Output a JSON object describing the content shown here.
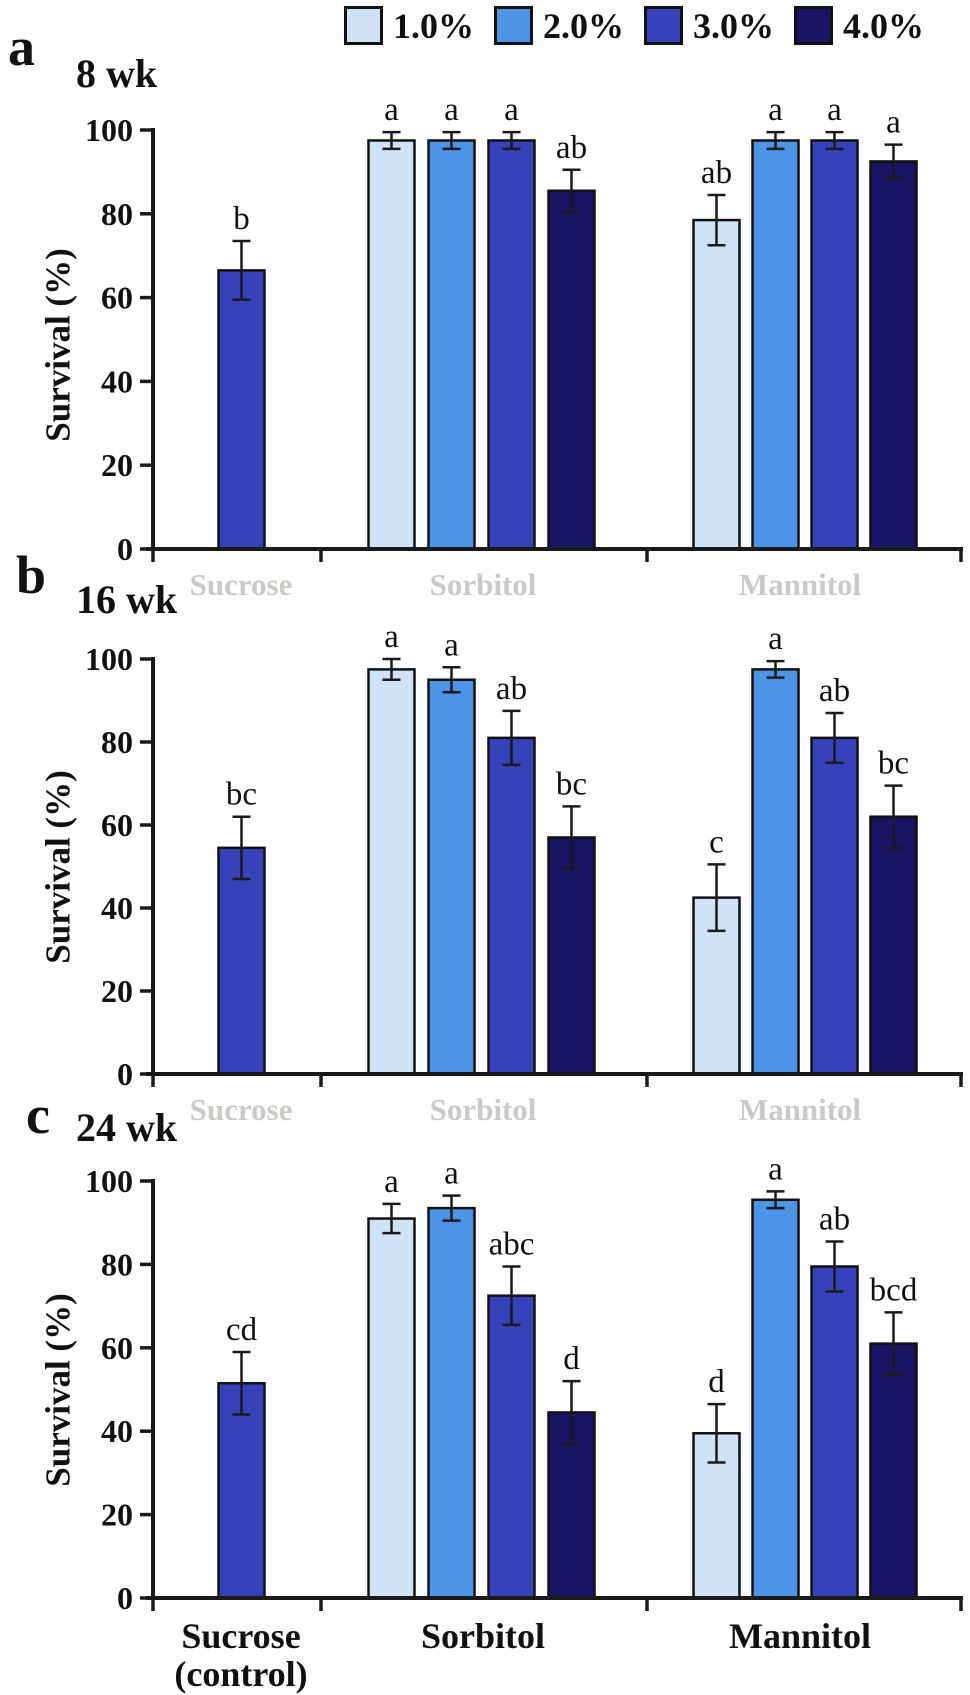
{
  "colors": {
    "background": "#ffffff",
    "axis": "#1a1a1a",
    "bar_border": "#111111",
    "error_bar": "#111111",
    "text": "#111111",
    "ghost_text": "#8f8b83"
  },
  "chart_data": {
    "type": "bar",
    "title": "",
    "ylabel": "Survival (%)",
    "ylim": [
      0,
      100
    ],
    "yticks": [
      0,
      20,
      40,
      60,
      80,
      100
    ],
    "grid": false,
    "legend_position": "top",
    "series": [
      {
        "name": "1.0%",
        "color": "#d0e2f6"
      },
      {
        "name": "2.0%",
        "color": "#4b94e6"
      },
      {
        "name": "3.0%",
        "color": "#3642ba"
      },
      {
        "name": "4.0%",
        "color": "#191463"
      }
    ],
    "groups": [
      "Sucrose (control)",
      "Sorbitol",
      "Mannitol"
    ],
    "x_axis_labels": {
      "sucrose_line1": "Sucrose",
      "sucrose_line2": "(control)",
      "sorbitol": "Sorbitol",
      "mannitol": "Mannitol"
    },
    "ghost_labels": [
      "Sucrose",
      "Sorbitol",
      "Mannitol"
    ],
    "panels": [
      {
        "panel_letter": "a",
        "title": "8 wk",
        "groups": [
          {
            "label": "Sucrose (control)",
            "bars": [
              {
                "series": "3.0%",
                "value": 66.5,
                "error": 7.0,
                "sig": "b"
              }
            ]
          },
          {
            "label": "Sorbitol",
            "bars": [
              {
                "series": "1.0%",
                "value": 97.5,
                "error": 2.0,
                "sig": "a"
              },
              {
                "series": "2.0%",
                "value": 97.5,
                "error": 2.0,
                "sig": "a"
              },
              {
                "series": "3.0%",
                "value": 97.5,
                "error": 2.0,
                "sig": "a"
              },
              {
                "series": "4.0%",
                "value": 85.5,
                "error": 5.0,
                "sig": "ab"
              }
            ]
          },
          {
            "label": "Mannitol",
            "bars": [
              {
                "series": "1.0%",
                "value": 78.5,
                "error": 6.0,
                "sig": "ab"
              },
              {
                "series": "2.0%",
                "value": 97.5,
                "error": 2.0,
                "sig": "a"
              },
              {
                "series": "3.0%",
                "value": 97.5,
                "error": 2.0,
                "sig": "a"
              },
              {
                "series": "4.0%",
                "value": 92.5,
                "error": 4.0,
                "sig": "a"
              }
            ]
          }
        ]
      },
      {
        "panel_letter": "b",
        "title": "16 wk",
        "groups": [
          {
            "label": "Sucrose (control)",
            "bars": [
              {
                "series": "3.0%",
                "value": 54.5,
                "error": 7.5,
                "sig": "bc"
              }
            ]
          },
          {
            "label": "Sorbitol",
            "bars": [
              {
                "series": "1.0%",
                "value": 97.5,
                "error": 2.5,
                "sig": "a"
              },
              {
                "series": "2.0%",
                "value": 95.0,
                "error": 3.0,
                "sig": "a"
              },
              {
                "series": "3.0%",
                "value": 81.0,
                "error": 6.5,
                "sig": "ab"
              },
              {
                "series": "4.0%",
                "value": 57.0,
                "error": 7.5,
                "sig": "bc"
              }
            ]
          },
          {
            "label": "Mannitol",
            "bars": [
              {
                "series": "1.0%",
                "value": 42.5,
                "error": 8.0,
                "sig": "c"
              },
              {
                "series": "2.0%",
                "value": 97.5,
                "error": 2.0,
                "sig": "a"
              },
              {
                "series": "3.0%",
                "value": 81.0,
                "error": 6.0,
                "sig": "ab"
              },
              {
                "series": "4.0%",
                "value": 62.0,
                "error": 7.5,
                "sig": "bc"
              }
            ]
          }
        ]
      },
      {
        "panel_letter": "c",
        "title": "24 wk",
        "groups": [
          {
            "label": "Sucrose (control)",
            "bars": [
              {
                "series": "3.0%",
                "value": 51.5,
                "error": 7.5,
                "sig": "cd"
              }
            ]
          },
          {
            "label": "Sorbitol",
            "bars": [
              {
                "series": "1.0%",
                "value": 91.0,
                "error": 3.5,
                "sig": "a"
              },
              {
                "series": "2.0%",
                "value": 93.5,
                "error": 3.0,
                "sig": "a"
              },
              {
                "series": "3.0%",
                "value": 72.5,
                "error": 7.0,
                "sig": "abc"
              },
              {
                "series": "4.0%",
                "value": 44.5,
                "error": 7.5,
                "sig": "d"
              }
            ]
          },
          {
            "label": "Mannitol",
            "bars": [
              {
                "series": "1.0%",
                "value": 39.5,
                "error": 7.0,
                "sig": "d"
              },
              {
                "series": "2.0%",
                "value": 95.5,
                "error": 2.0,
                "sig": "a"
              },
              {
                "series": "3.0%",
                "value": 79.5,
                "error": 6.0,
                "sig": "ab"
              },
              {
                "series": "4.0%",
                "value": 61.0,
                "error": 7.5,
                "sig": "bcd"
              }
            ]
          }
        ]
      }
    ]
  }
}
